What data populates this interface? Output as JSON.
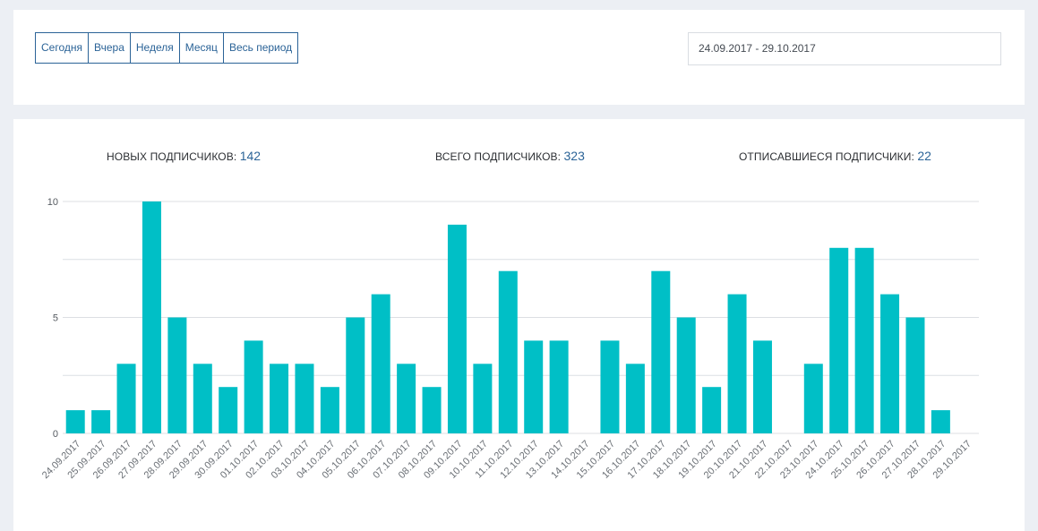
{
  "filters": {
    "buttons": [
      "Сегодня",
      "Вчера",
      "Неделя",
      "Месяц",
      "Весь период"
    ]
  },
  "date_range": {
    "value": "24.09.2017 - 29.10.2017"
  },
  "stats": {
    "new_label": "НОВЫХ ПОДПИСЧИКОВ:",
    "new_value": "142",
    "total_label": "ВСЕГО ПОДПИСЧИКОВ:",
    "total_value": "323",
    "unsub_label": "ОТПИСАВШИЕСЯ ПОДПИСЧИКИ:",
    "unsub_value": "22"
  },
  "colors": {
    "bar": "#00bfc6",
    "accent": "#2b6397",
    "grid": "#dcdfe3"
  },
  "chart_data": {
    "type": "bar",
    "categories": [
      "24.09.2017",
      "25.09.2017",
      "26.09.2017",
      "27.09.2017",
      "28.09.2017",
      "29.09.2017",
      "30.09.2017",
      "01.10.2017",
      "02.10.2017",
      "03.10.2017",
      "04.10.2017",
      "05.10.2017",
      "06.10.2017",
      "07.10.2017",
      "08.10.2017",
      "09.10.2017",
      "10.10.2017",
      "11.10.2017",
      "12.10.2017",
      "13.10.2017",
      "14.10.2017",
      "15.10.2017",
      "16.10.2017",
      "17.10.2017",
      "18.10.2017",
      "19.10.2017",
      "20.10.2017",
      "21.10.2017",
      "22.10.2017",
      "23.10.2017",
      "24.10.2017",
      "25.10.2017",
      "26.10.2017",
      "27.10.2017",
      "28.10.2017",
      "29.10.2017"
    ],
    "values": [
      1,
      1,
      3,
      10,
      5,
      3,
      2,
      4,
      3,
      3,
      2,
      5,
      6,
      3,
      2,
      9,
      3,
      7,
      4,
      4,
      0,
      4,
      3,
      7,
      5,
      2,
      6,
      4,
      0,
      3,
      8,
      8,
      6,
      5,
      1,
      0
    ],
    "yticks": [
      0,
      5,
      10
    ],
    "ylim": [
      0,
      10
    ],
    "grid": true
  }
}
